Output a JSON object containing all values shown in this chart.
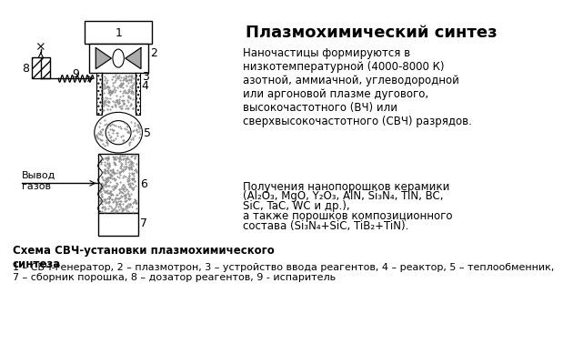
{
  "title": "Плазмохимический синтез",
  "bg_color": "#ffffff",
  "diagram_color": "#000000",
  "caption_bold": "Схема СВЧ-установки плазмохимического\nсинтеза",
  "caption_normal": "1 – СВЧ-генератор, 2 – плазмотрон, 3 – устройство ввода реагентов, 4 – реактор, 5 – теплообменник,\n7 – сборник порошка, 8 – дозатор реагентов, 9 - испаритель",
  "text1": "Наночастицы формируются в\nнизкотемпературной (4000-8000 К)\nазотной, аммиачной, углеводородной\nили аргоновой плазме дугового,\nвысокочастотного (ВЧ) или\nсверхвысокочастотного (СВЧ) разрядов.",
  "text2a": "Получения нанопорошков керамики",
  "text2b": "(Al₂O₃, MgO, Y₂O₃, AlN, Si₃N₄, TiN, BC,",
  "text2c": "SiC, TaC, WC и др.),",
  "text2d": "а также порошков композиционного",
  "text2e": "состава (Si₃N₄+SiC, TiB₂+TiN).",
  "vyvod": "Вывод\nгазов"
}
